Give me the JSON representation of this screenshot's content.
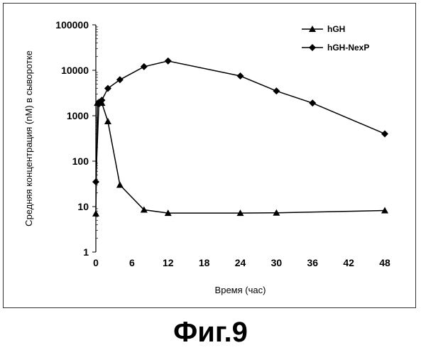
{
  "caption": "Фиг.9",
  "chart_data": {
    "type": "line",
    "title": "",
    "xlabel": "Время (час)",
    "ylabel": "Средняя концентрация (nM) в сыворотке",
    "x_ticks": [
      0,
      6,
      12,
      18,
      24,
      30,
      36,
      42,
      48
    ],
    "y_ticks": [
      1,
      10,
      100,
      1000,
      10000,
      100000
    ],
    "y_tick_labels": [
      "1",
      "10",
      "100",
      "1000",
      "10000",
      "100000"
    ],
    "xlim": [
      0,
      48
    ],
    "ylim": [
      1,
      100000
    ],
    "y_scale": "log",
    "grid": false,
    "legend_position": "top-right",
    "series": [
      {
        "name": "hGH",
        "marker": "triangle",
        "color": "#000000",
        "points": [
          [
            0,
            7
          ],
          [
            0.25,
            1900
          ],
          [
            0.5,
            2000
          ],
          [
            1,
            1900
          ],
          [
            2,
            750
          ],
          [
            4,
            30
          ],
          [
            8,
            8.5
          ],
          [
            12,
            7.2
          ],
          [
            24,
            7.2
          ],
          [
            30,
            7.3
          ],
          [
            48,
            8.2
          ]
        ]
      },
      {
        "name": "hGH-NexP",
        "marker": "diamond",
        "color": "#000000",
        "points": [
          [
            0,
            35
          ],
          [
            0.5,
            1800
          ],
          [
            1,
            2200
          ],
          [
            2,
            4000
          ],
          [
            4,
            6200
          ],
          [
            8,
            12000
          ],
          [
            12,
            16000
          ],
          [
            24,
            7500
          ],
          [
            30,
            3500
          ],
          [
            36,
            1900
          ],
          [
            48,
            400
          ]
        ]
      }
    ]
  }
}
